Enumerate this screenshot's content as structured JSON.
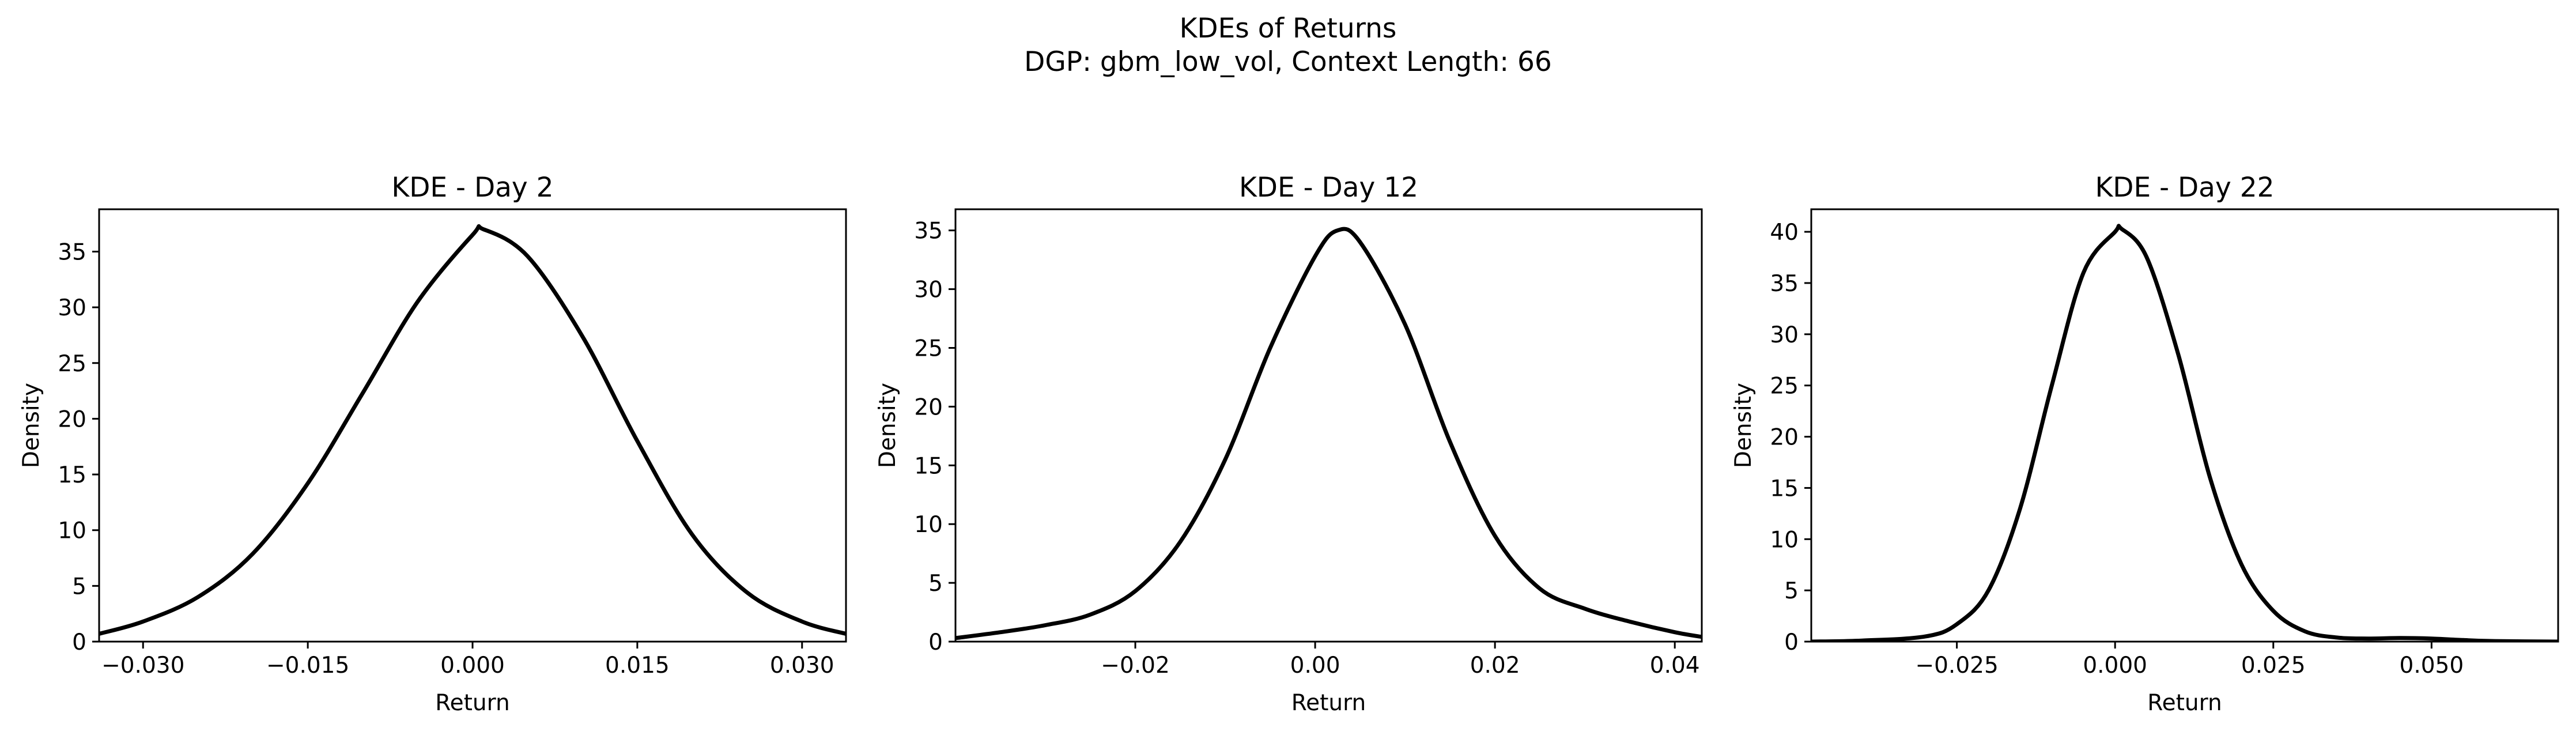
{
  "figure": {
    "title_line1": "KDEs of Returns",
    "title_line2": "DGP: gbm_low_vol, Context Length: 66"
  },
  "chart_data": [
    {
      "type": "line",
      "title": "KDE - Day 2",
      "xlabel": "Return",
      "ylabel": "Density",
      "xlim": [
        -0.034,
        0.034
      ],
      "ylim": [
        0,
        38.8
      ],
      "xticks": [
        -0.03,
        -0.015,
        0.0,
        0.015,
        0.03
      ],
      "xtick_labels": [
        "−0.030",
        "−0.015",
        "0.000",
        "0.015",
        "0.030"
      ],
      "yticks": [
        0,
        5,
        10,
        15,
        20,
        25,
        30,
        35
      ],
      "ytick_labels": [
        "0",
        "5",
        "10",
        "15",
        "20",
        "25",
        "30",
        "35"
      ],
      "line_color": "#000000",
      "x": [
        -0.034,
        -0.03,
        -0.025,
        -0.02,
        -0.015,
        -0.01,
        -0.005,
        0.0,
        0.001,
        0.005,
        0.01,
        0.015,
        0.02,
        0.025,
        0.03,
        0.034
      ],
      "y": [
        0.7,
        1.8,
        4.0,
        7.9,
        14.2,
        22.3,
        30.5,
        36.5,
        37.0,
        34.6,
        27.4,
        18.0,
        9.6,
        4.4,
        1.8,
        0.7
      ]
    },
    {
      "type": "line",
      "title": "KDE - Day 12",
      "xlabel": "Return",
      "ylabel": "Density",
      "xlim": [
        -0.04,
        0.043
      ],
      "ylim": [
        0,
        36.8
      ],
      "xticks": [
        -0.02,
        0.0,
        0.02,
        0.04
      ],
      "xtick_labels": [
        "−0.02",
        "0.00",
        "0.02",
        "0.04"
      ],
      "yticks": [
        0,
        5,
        10,
        15,
        20,
        25,
        30,
        35
      ],
      "ytick_labels": [
        "0",
        "5",
        "10",
        "15",
        "20",
        "25",
        "30",
        "35"
      ],
      "line_color": "#000000",
      "x": [
        -0.04,
        -0.035,
        -0.03,
        -0.025,
        -0.02,
        -0.015,
        -0.01,
        -0.005,
        0.0,
        0.0025,
        0.005,
        0.01,
        0.015,
        0.02,
        0.025,
        0.03,
        0.035,
        0.04,
        0.043
      ],
      "y": [
        0.3,
        0.8,
        1.4,
        2.3,
        4.3,
        8.5,
        15.5,
        25.0,
        32.8,
        35.0,
        34.0,
        27.0,
        17.0,
        9.0,
        4.5,
        2.8,
        1.7,
        0.8,
        0.4
      ]
    },
    {
      "type": "line",
      "title": "KDE - Day 22",
      "xlabel": "Return",
      "ylabel": "Density",
      "xlim": [
        -0.048,
        0.07
      ],
      "ylim": [
        0,
        42.2
      ],
      "xticks": [
        -0.025,
        0.0,
        0.025,
        0.05
      ],
      "xtick_labels": [
        "−0.025",
        "0.000",
        "0.025",
        "0.050"
      ],
      "yticks": [
        0,
        5,
        10,
        15,
        20,
        25,
        30,
        35,
        40
      ],
      "ytick_labels": [
        "0",
        "5",
        "10",
        "15",
        "20",
        "25",
        "30",
        "35",
        "40"
      ],
      "line_color": "#000000",
      "x": [
        -0.048,
        -0.04,
        -0.03,
        -0.025,
        -0.02,
        -0.015,
        -0.01,
        -0.005,
        0.0,
        0.001,
        0.005,
        0.01,
        0.015,
        0.02,
        0.025,
        0.03,
        0.035,
        0.04,
        0.045,
        0.05,
        0.055,
        0.06,
        0.07
      ],
      "y": [
        0.0,
        0.1,
        0.5,
        1.7,
        5.0,
        13.0,
        25.0,
        36.0,
        40.0,
        40.3,
        37.5,
        28.0,
        16.0,
        7.5,
        3.0,
        1.0,
        0.4,
        0.3,
        0.35,
        0.3,
        0.15,
        0.05,
        0.0
      ]
    }
  ]
}
